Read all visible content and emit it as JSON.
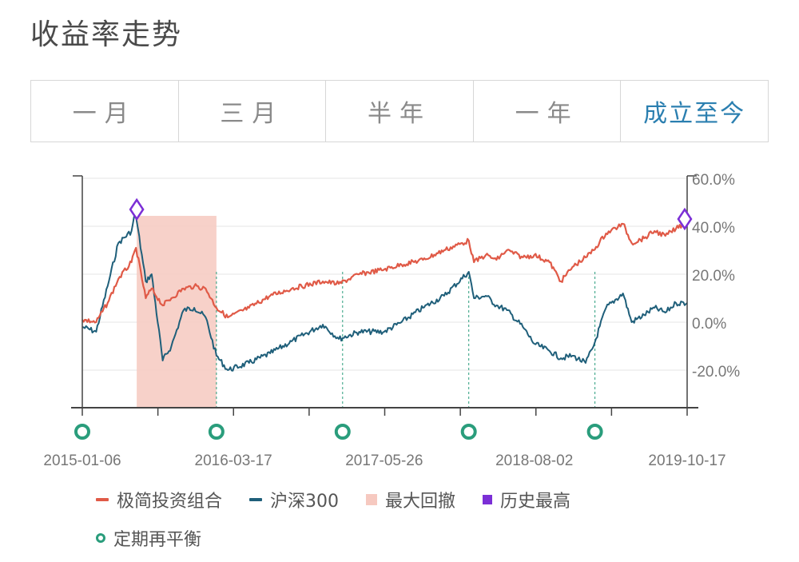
{
  "page": {
    "title": "收益率走势"
  },
  "tabs": [
    {
      "label": "一月",
      "active": false
    },
    {
      "label": "三月",
      "active": false
    },
    {
      "label": "半年",
      "active": false
    },
    {
      "label": "一年",
      "active": false
    },
    {
      "label": "成立至今",
      "active": true
    }
  ],
  "colors": {
    "portfolio": "#e05a47",
    "hs300": "#1f5f7a",
    "drawdown": "#f6c9c0",
    "peak": "#7b2fd6",
    "rebalance": "#2a9d7c",
    "axis": "#444444",
    "grid": "#e6e6e6"
  },
  "legend": {
    "portfolio": "极简投资组合",
    "hs300": "沪深300",
    "drawdown": "最大回撤",
    "peak": "历史最高",
    "rebalance": "定期再平衡"
  },
  "chart_data": {
    "type": "line",
    "x_range": [
      "2015-01-06",
      "2019-10-17"
    ],
    "x_ticks": [
      "2015-01-06",
      "2016-03-17",
      "2017-05-26",
      "2018-08-02",
      "2019-10-17"
    ],
    "y_ticks": [
      "60.0%",
      "40.0%",
      "20.0%",
      "0.0%",
      "-20.0%"
    ],
    "ylim": [
      -35,
      60
    ],
    "series": [
      {
        "name": "极简投资组合",
        "color": "#e05a47",
        "x": [
          "2015-01-06",
          "2015-02-15",
          "2015-03-20",
          "2015-04-20",
          "2015-05-28",
          "2015-06-10",
          "2015-07-08",
          "2015-07-25",
          "2015-08-26",
          "2015-09-20",
          "2015-10-25",
          "2015-11-25",
          "2015-12-28",
          "2016-01-28",
          "2016-03-01",
          "2016-05-01",
          "2016-07-01",
          "2016-09-01",
          "2016-11-30",
          "2017-01-15",
          "2017-03-15",
          "2017-05-26",
          "2017-07-15",
          "2017-09-15",
          "2017-11-15",
          "2018-01-25",
          "2018-02-09",
          "2018-03-15",
          "2018-04-15",
          "2018-05-15",
          "2018-06-30",
          "2018-08-02",
          "2018-09-15",
          "2018-10-18",
          "2018-11-20",
          "2018-12-28",
          "2019-01-20",
          "2019-02-25",
          "2019-04-15",
          "2019-05-10",
          "2019-06-15",
          "2019-07-15",
          "2019-08-15",
          "2019-09-15",
          "2019-10-17"
        ],
        "y": [
          1,
          0,
          8,
          18,
          25,
          31,
          10,
          14,
          7,
          10,
          14,
          15,
          14,
          6,
          2,
          6,
          11,
          14,
          17,
          16,
          20,
          22,
          24,
          26,
          30,
          34,
          25,
          28,
          26,
          30,
          27,
          28,
          25,
          17,
          23,
          27,
          30,
          37,
          41,
          33,
          35,
          38,
          36,
          39,
          42
        ]
      },
      {
        "name": "沪深300",
        "color": "#1f5f7a",
        "x": [
          "2015-01-06",
          "2015-02-15",
          "2015-03-20",
          "2015-04-20",
          "2015-05-28",
          "2015-06-08",
          "2015-07-08",
          "2015-07-25",
          "2015-08-26",
          "2015-09-20",
          "2015-10-25",
          "2015-11-25",
          "2015-12-28",
          "2016-01-28",
          "2016-03-01",
          "2016-05-01",
          "2016-07-01",
          "2016-09-01",
          "2016-11-30",
          "2017-01-15",
          "2017-03-15",
          "2017-05-26",
          "2017-07-15",
          "2017-09-15",
          "2017-11-15",
          "2018-01-25",
          "2018-02-09",
          "2018-03-15",
          "2018-04-15",
          "2018-05-15",
          "2018-06-30",
          "2018-08-02",
          "2018-09-15",
          "2018-10-18",
          "2018-11-20",
          "2018-12-28",
          "2019-01-20",
          "2019-02-25",
          "2019-04-15",
          "2019-05-10",
          "2019-06-15",
          "2019-07-15",
          "2019-08-15",
          "2019-09-15",
          "2019-10-17"
        ],
        "y": [
          -2,
          -4,
          15,
          33,
          38,
          46,
          17,
          20,
          -16,
          -10,
          5,
          6,
          2,
          -14,
          -20,
          -17,
          -13,
          -8,
          -1,
          -7,
          -4,
          -4,
          0,
          6,
          11,
          21,
          10,
          11,
          7,
          5,
          -2,
          -9,
          -12,
          -15,
          -14,
          -17,
          -10,
          6,
          12,
          0,
          3,
          6,
          4,
          8,
          8
        ]
      }
    ],
    "max_drawdown": {
      "start": "2015-06-12",
      "end": "2016-01-28"
    },
    "historical_highs": [
      {
        "date": "2015-06-12",
        "value": 47
      },
      {
        "date": "2019-10-10",
        "value": 43
      }
    ],
    "rebalance_dates": [
      "2015-01-06",
      "2016-01-28",
      "2017-01-26",
      "2018-01-25",
      "2019-01-24"
    ]
  }
}
